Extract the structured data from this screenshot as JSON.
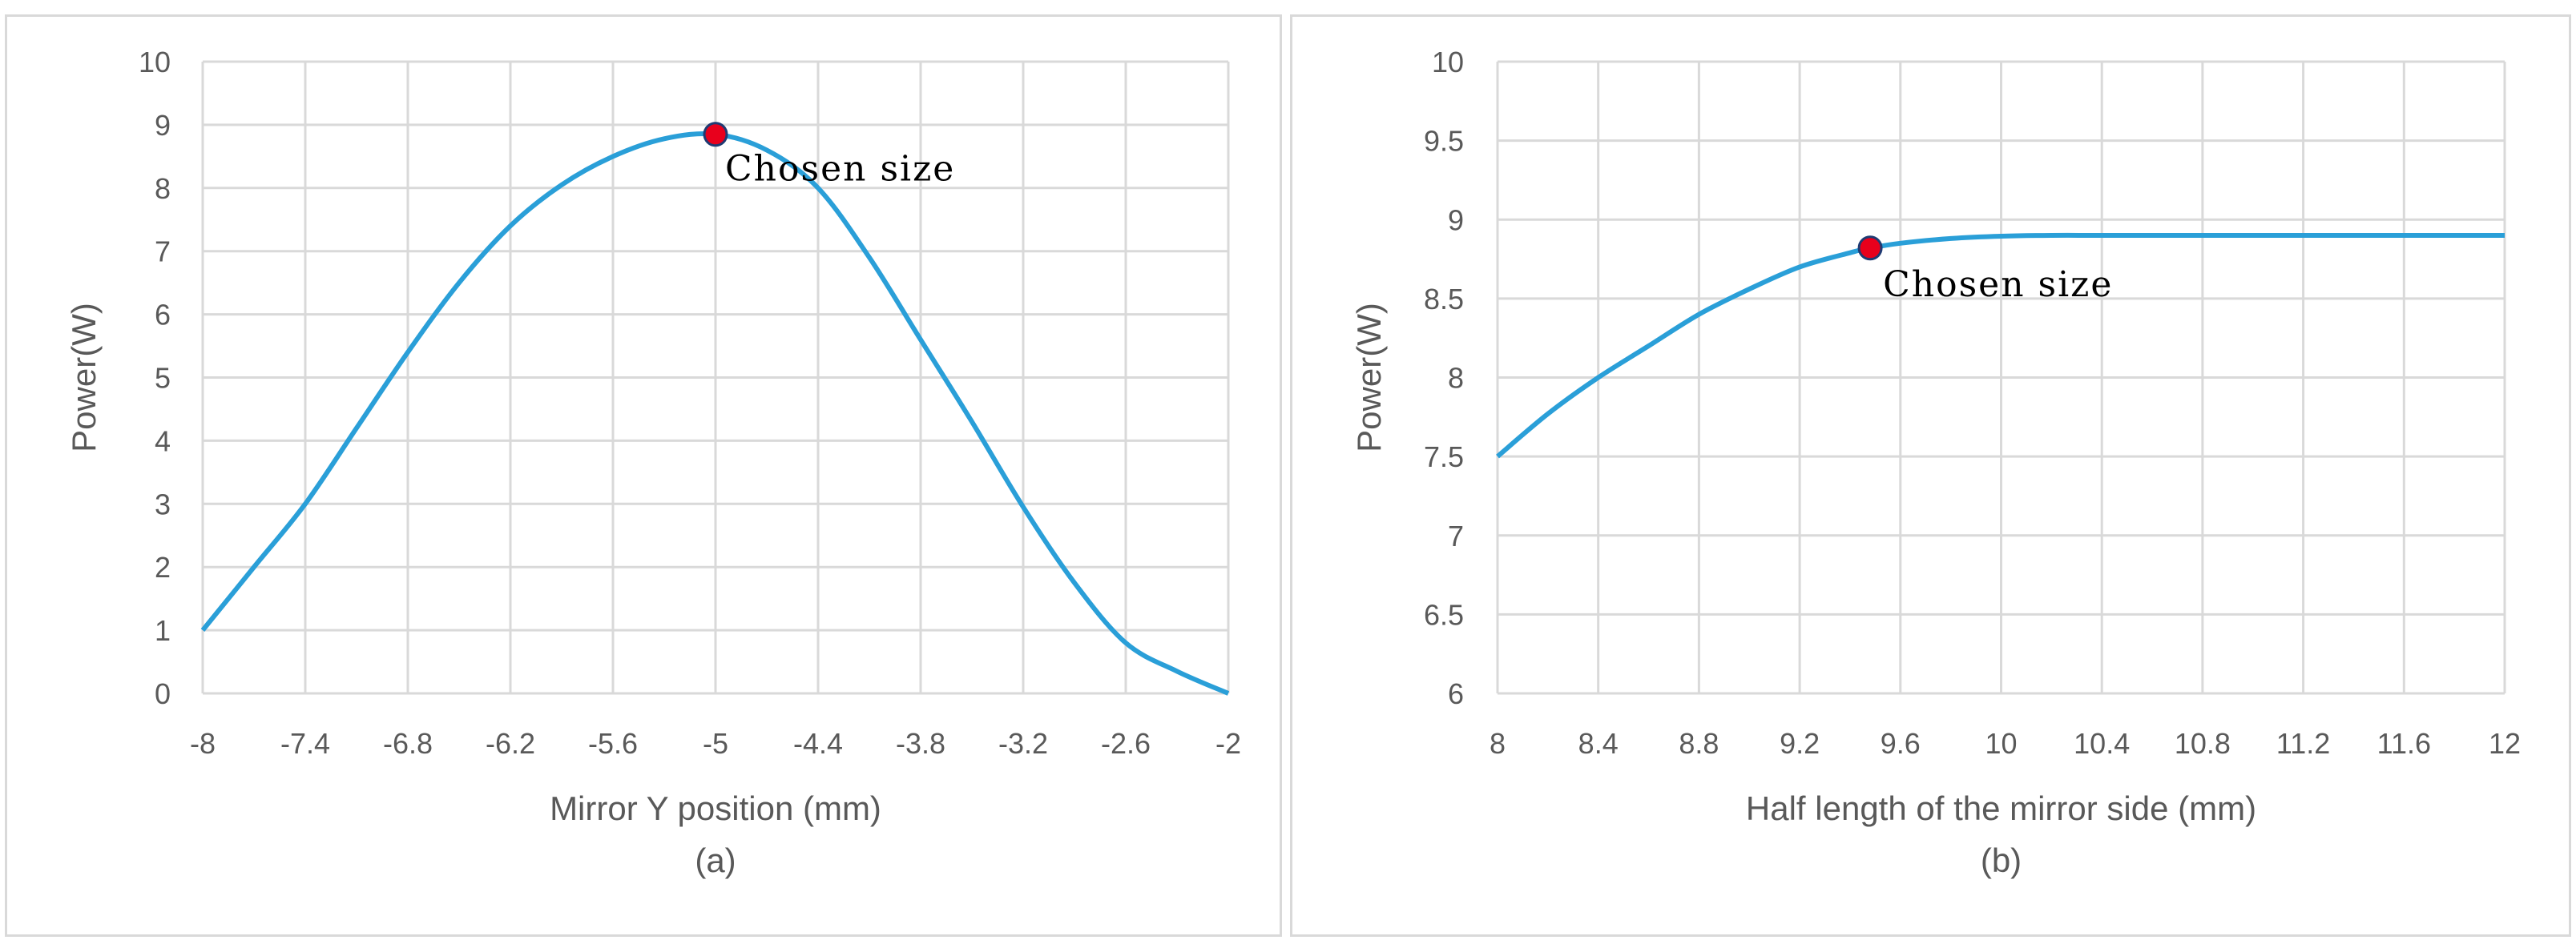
{
  "chart_data": [
    {
      "type": "line",
      "title": "",
      "xlabel": "Mirror Y position (mm)",
      "ylabel": "Power(W)",
      "caption": "(a)",
      "xlim": [
        -8,
        -2
      ],
      "ylim": [
        0,
        10
      ],
      "xticks": [
        -8,
        -7.4,
        -6.8,
        -6.2,
        -5.6,
        -5,
        -4.4,
        -3.8,
        -3.2,
        -2.6,
        -2
      ],
      "xtick_labels": [
        "-8",
        "-7.4",
        "-6.8",
        "-6.2",
        "-5.6",
        "-5",
        "-4.4",
        "-3.8",
        "-3.2",
        "-2.6",
        "-2"
      ],
      "yticks": [
        0,
        1,
        2,
        3,
        4,
        5,
        6,
        7,
        8,
        9,
        10
      ],
      "ytick_labels": [
        "0",
        "1",
        "2",
        "3",
        "4",
        "5",
        "6",
        "7",
        "8",
        "9",
        "10"
      ],
      "grid": true,
      "line_color": "#2a9fd8",
      "marker_color": "#e8001c",
      "series": [
        {
          "x": [
            -8,
            -7.7,
            -7.4,
            -7.1,
            -6.8,
            -6.5,
            -6.2,
            -5.9,
            -5.6,
            -5.3,
            -5,
            -4.7,
            -4.4,
            -4.1,
            -3.8,
            -3.5,
            -3.2,
            -2.9,
            -2.6,
            -2.3,
            -2
          ],
          "y": [
            1.0,
            2.0,
            3.0,
            4.2,
            5.4,
            6.5,
            7.4,
            8.05,
            8.5,
            8.78,
            8.85,
            8.6,
            8.0,
            6.9,
            5.6,
            4.3,
            2.95,
            1.75,
            0.8,
            0.35,
            0.0
          ]
        }
      ],
      "annotation": {
        "x": -5,
        "y": 8.85,
        "text": "Chosen size"
      }
    },
    {
      "type": "line",
      "title": "",
      "xlabel": "Half length of the mirror side (mm)",
      "ylabel": "Power(W)",
      "caption": "(b)",
      "xlim": [
        8,
        12
      ],
      "ylim": [
        6,
        10
      ],
      "xticks": [
        8,
        8.4,
        8.8,
        9.2,
        9.6,
        10,
        10.4,
        10.8,
        11.2,
        11.6,
        12
      ],
      "xtick_labels": [
        "8",
        "8.4",
        "8.8",
        "9.2",
        "9.6",
        "10",
        "10.4",
        "10.8",
        "11.2",
        "11.6",
        "12"
      ],
      "yticks": [
        6,
        6.5,
        7,
        7.5,
        8,
        8.5,
        9,
        9.5,
        10
      ],
      "ytick_labels": [
        "6",
        "6.5",
        "7",
        "7.5",
        "8",
        "8.5",
        "9",
        "9.5",
        "10"
      ],
      "grid": true,
      "line_color": "#2a9fd8",
      "marker_color": "#e8001c",
      "series": [
        {
          "x": [
            8,
            8.2,
            8.4,
            8.6,
            8.8,
            9.0,
            9.2,
            9.4,
            9.48,
            9.6,
            9.8,
            10.0,
            10.2,
            10.4,
            10.8,
            11.2,
            11.6,
            12
          ],
          "y": [
            7.5,
            7.77,
            8.0,
            8.2,
            8.4,
            8.56,
            8.7,
            8.79,
            8.82,
            8.85,
            8.88,
            8.895,
            8.9,
            8.9,
            8.9,
            8.9,
            8.9,
            8.9
          ]
        }
      ],
      "annotation": {
        "x": 9.48,
        "y": 8.82,
        "text": "Chosen size"
      }
    }
  ]
}
